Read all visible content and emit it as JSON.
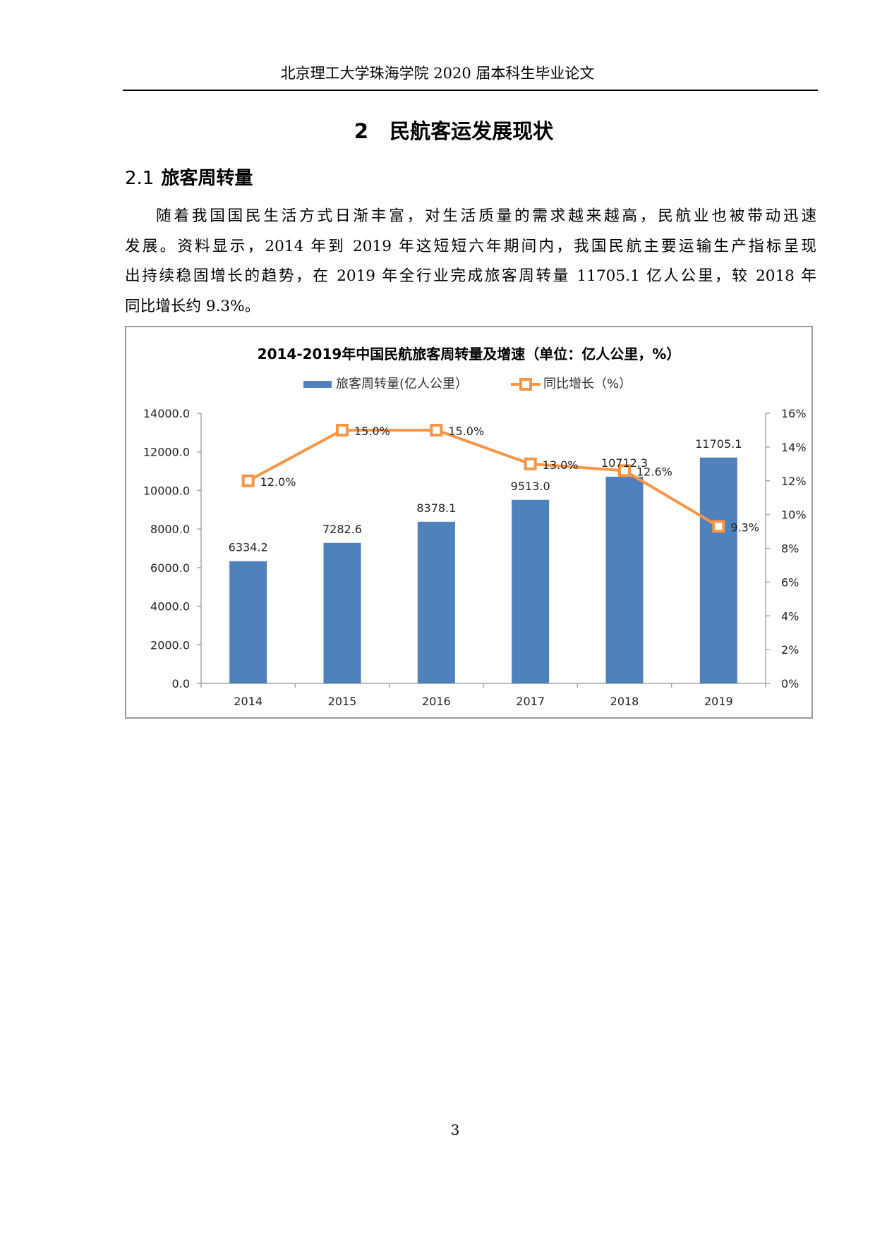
{
  "header": {
    "running_title": "北京理工大学珠海学院 2020 届本科生毕业论文"
  },
  "chapter": {
    "number": "2",
    "title": "民航客运发展现状"
  },
  "section": {
    "number": "2.1",
    "title": "旅客周转量"
  },
  "paragraph": {
    "lines": [
      "随着我国国民生活方式日渐丰富，对生活质量的需求越来越高，民航业也被带动迅速",
      "发展。资料显示，2014 年到 2019 年这短短六年期间内，我国民航主要运输生产指标呈现",
      "出持续稳固增长的趋势，在 2019 年全行业完成旅客周转量 11705.1 亿人公里，较 2018 年",
      "同比增长约 9.3%。"
    ]
  },
  "chart": {
    "title": "2014-2019年中国民航旅客周转量及增速（单位：亿人公里，%）",
    "legend": {
      "bar_label": "旅客周转量(亿人公里）",
      "line_label": "同比增长（%）"
    },
    "colors": {
      "bar": "#4F81BD",
      "line": "#F79646",
      "axis": "#a6a6a6",
      "border": "#9b9b9b"
    },
    "left_axis_ticks": [
      "0.0",
      "2000.0",
      "4000.0",
      "6000.0",
      "8000.0",
      "10000.0",
      "12000.0",
      "14000.0"
    ],
    "right_axis_ticks": [
      "0%",
      "2%",
      "4%",
      "6%",
      "8%",
      "10%",
      "12%",
      "14%",
      "16%"
    ],
    "categories": [
      "2014",
      "2015",
      "2016",
      "2017",
      "2018",
      "2019"
    ],
    "bar_labels": [
      "6334.2",
      "7282.6",
      "8378.1",
      "9513.0",
      "10712.3",
      "11705.1"
    ],
    "line_labels": [
      "12.0%",
      "15.0%",
      "15.0%",
      "13.0%",
      "12.6%",
      "9.3%"
    ]
  },
  "chart_data": {
    "type": "bar",
    "title": "2014-2019年中国民航旅客周转量及增速（单位：亿人公里，%）",
    "categories": [
      "2014",
      "2015",
      "2016",
      "2017",
      "2018",
      "2019"
    ],
    "series": [
      {
        "name": "旅客周转量(亿人公里）",
        "type": "bar",
        "axis": "left",
        "values": [
          6334.2,
          7282.6,
          8378.1,
          9513.0,
          10712.3,
          11705.1
        ]
      },
      {
        "name": "同比增长（%）",
        "type": "line",
        "axis": "right",
        "values": [
          12.0,
          15.0,
          15.0,
          13.0,
          12.6,
          9.3
        ]
      }
    ],
    "xlabel": "",
    "ylabel": "",
    "ylim": [
      0,
      14000
    ],
    "y2lim": [
      0,
      16
    ],
    "legend_position": "top",
    "grid": false
  },
  "footer": {
    "page_number": "3"
  }
}
